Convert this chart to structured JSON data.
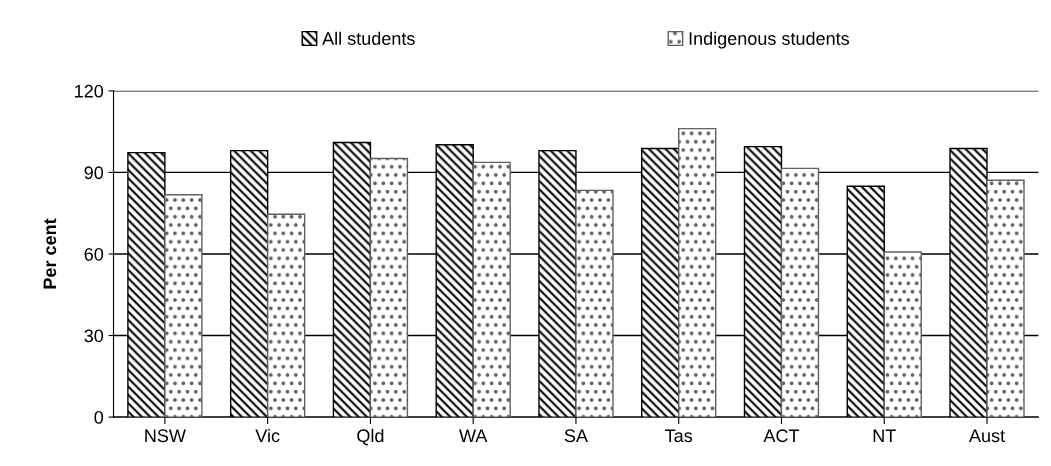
{
  "chart_data": {
    "type": "bar",
    "ylabel": "Per cent",
    "categories": [
      "NSW",
      "Vic",
      "Qld",
      "WA",
      "SA",
      "Tas",
      "ACT",
      "NT",
      "Aust"
    ],
    "series": [
      {
        "name": "All students",
        "color": "#000000",
        "values": [
          97.3,
          98.0,
          101.0,
          100.2,
          98.0,
          98.8,
          99.5,
          84.9,
          98.8
        ]
      },
      {
        "name": "Indigenous students",
        "color": "#606060",
        "values": [
          81.8,
          74.6,
          95.1,
          93.7,
          83.4,
          106.1,
          91.5,
          60.7,
          87.1
        ]
      }
    ],
    "ylim": [
      0,
      120
    ],
    "yticks": [
      0,
      30,
      60,
      90,
      120
    ],
    "grid": "y",
    "legend": "top"
  }
}
